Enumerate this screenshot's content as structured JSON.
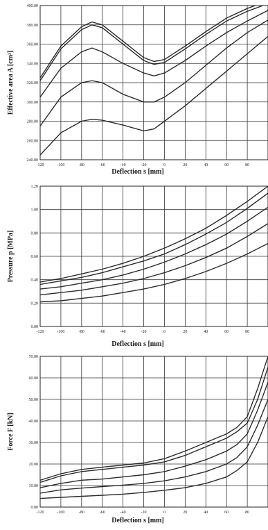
{
  "chart_data": [
    {
      "type": "line",
      "xlabel": "Deflection s [mm]",
      "ylabel": "Effective area A [cm²]",
      "xlim": [
        -120,
        100
      ],
      "ylim": [
        240,
        400
      ],
      "x_ticks": [
        "-120",
        "-100",
        "-80",
        "-60",
        "-40",
        "-20",
        "0",
        "20",
        "40",
        "60",
        "80"
      ],
      "y_ticks": [
        "240.00",
        "260.00",
        "280.00",
        "300.00",
        "320.00",
        "340.00",
        "360.00",
        "380.00",
        "400.00"
      ],
      "grid": true,
      "x": [
        -120,
        -100,
        -80,
        -70,
        -60,
        -40,
        -20,
        -10,
        0,
        20,
        40,
        60,
        80,
        100
      ],
      "series": [
        {
          "values": [
            325,
            358,
            378,
            383,
            380,
            363,
            346,
            342,
            344,
            358,
            373,
            387,
            397,
            405
          ]
        },
        {
          "values": [
            322,
            355,
            375,
            380,
            377,
            360,
            343,
            339,
            341,
            355,
            370,
            384,
            394,
            402
          ]
        },
        {
          "values": [
            305,
            335,
            352,
            356,
            352,
            340,
            330,
            327,
            330,
            343,
            358,
            372,
            384,
            395
          ]
        },
        {
          "values": [
            275,
            305,
            320,
            322,
            320,
            308,
            300,
            300,
            305,
            320,
            338,
            356,
            372,
            385
          ]
        },
        {
          "values": [
            245,
            268,
            280,
            282,
            281,
            276,
            270,
            272,
            280,
            296,
            314,
            332,
            350,
            368
          ]
        }
      ]
    },
    {
      "type": "line",
      "xlabel": "Deflection s [mm]",
      "ylabel": "Pressure p [MPa]",
      "xlim": [
        -120,
        100
      ],
      "ylim": [
        0,
        1.2
      ],
      "x_ticks": [
        "-120",
        "-100",
        "-80",
        "-60",
        "-40",
        "-20",
        "0",
        "20",
        "40",
        "60",
        "80"
      ],
      "y_ticks": [
        "0.00",
        "0.20",
        "0.40",
        "0.60",
        "0.80",
        "1.00",
        "1.20"
      ],
      "grid": true,
      "x": [
        -120,
        -100,
        -80,
        -60,
        -40,
        -20,
        0,
        20,
        40,
        60,
        80,
        100
      ],
      "series": [
        {
          "values": [
            0.38,
            0.41,
            0.45,
            0.49,
            0.54,
            0.6,
            0.67,
            0.75,
            0.84,
            0.95,
            1.07,
            1.2
          ]
        },
        {
          "values": [
            0.36,
            0.39,
            0.42,
            0.46,
            0.51,
            0.56,
            0.62,
            0.7,
            0.79,
            0.89,
            1.01,
            1.14
          ]
        },
        {
          "values": [
            0.32,
            0.34,
            0.37,
            0.4,
            0.44,
            0.49,
            0.55,
            0.62,
            0.7,
            0.79,
            0.9,
            1.02
          ]
        },
        {
          "values": [
            0.27,
            0.29,
            0.31,
            0.34,
            0.37,
            0.41,
            0.46,
            0.52,
            0.59,
            0.67,
            0.77,
            0.88
          ]
        },
        {
          "values": [
            0.21,
            0.22,
            0.24,
            0.26,
            0.29,
            0.32,
            0.36,
            0.41,
            0.47,
            0.54,
            0.62,
            0.71
          ]
        }
      ]
    },
    {
      "type": "line",
      "xlabel": "Deflection s [mm]",
      "ylabel": "Force F [kN]",
      "xlim": [
        -120,
        100
      ],
      "ylim": [
        0,
        70
      ],
      "x_ticks": [
        "-120",
        "-100",
        "-80",
        "-60",
        "-40",
        "-20",
        "0",
        "20",
        "40",
        "60",
        "80"
      ],
      "y_ticks": [
        "0.00",
        "10.00",
        "20.00",
        "30.00",
        "40.00",
        "50.00",
        "60.00",
        "70.00"
      ],
      "grid": true,
      "x": [
        -120,
        -100,
        -80,
        -60,
        -40,
        -20,
        0,
        20,
        40,
        60,
        70,
        80,
        90,
        100
      ],
      "series": [
        {
          "values": [
            12.5,
            15.5,
            17.5,
            18.5,
            19.5,
            20.5,
            22.5,
            26,
            30,
            34,
            37,
            42,
            55,
            70
          ]
        },
        {
          "values": [
            11.5,
            14.5,
            16.5,
            17.5,
            18.5,
            19.5,
            21,
            24,
            28,
            32,
            35,
            39,
            50,
            65
          ]
        },
        {
          "values": [
            9,
            11,
            12.5,
            13,
            14,
            15,
            16.5,
            19,
            22,
            26,
            29,
            34,
            45,
            58
          ]
        },
        {
          "values": [
            6.5,
            8,
            8.8,
            9.5,
            10.2,
            11,
            12.2,
            14,
            16.5,
            20,
            23,
            28,
            38,
            50
          ]
        },
        {
          "values": [
            4,
            4.5,
            5,
            5.5,
            6,
            6.8,
            7.8,
            9,
            11,
            14,
            17,
            21,
            30,
            42
          ]
        }
      ]
    }
  ]
}
